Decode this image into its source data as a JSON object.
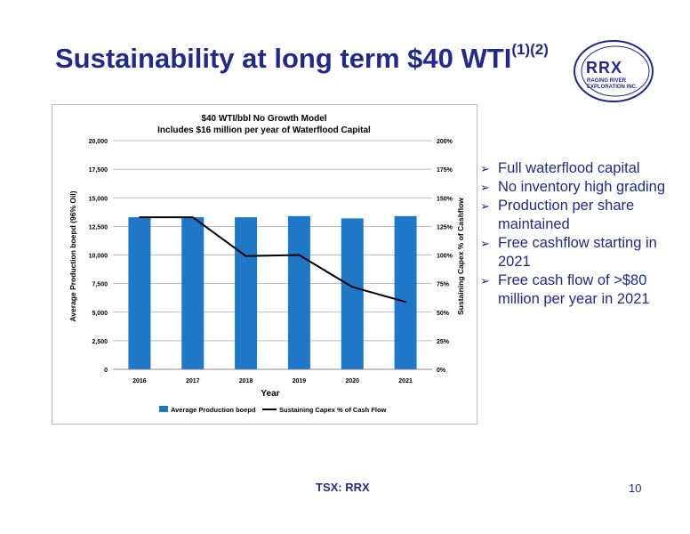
{
  "slide": {
    "title": "Sustainability at long term $40 WTI",
    "title_sup": "(1)(2)",
    "footer": "TSX: RRX",
    "page_number": "10"
  },
  "logo": {
    "text": "RRX",
    "subtext": "RAGING RIVER EXPLORATION INC."
  },
  "bullets": [
    "Full waterflood capital",
    "No inventory high grading",
    "Production per share maintained",
    "Free cashflow starting in 2021",
    "Free cash flow of >$80 million per year in 2021"
  ],
  "colors": {
    "brand": "#1f2a8c",
    "bar": "#1f77c8",
    "line": "#000000"
  },
  "chart_data": {
    "type": "bar",
    "title": "$40 WTI/bbl No Growth Model",
    "subtitle": "Includes $16 million per year of Waterflood Capital",
    "xlabel": "Year",
    "ylabel": "Average Production boepd (96% Oil)",
    "y2label": "Sustaining Capex % of Cashflow",
    "categories": [
      "2016",
      "2017",
      "2018",
      "2019",
      "2020",
      "2021"
    ],
    "ylim": [
      0,
      20000
    ],
    "y2lim": [
      0,
      200
    ],
    "yticks": [
      "0",
      "2,500",
      "5,000",
      "7,500",
      "10,000",
      "12,500",
      "15,000",
      "17,500",
      "20,000"
    ],
    "y2ticks": [
      "0%",
      "25%",
      "50%",
      "75%",
      "100%",
      "125%",
      "150%",
      "175%",
      "200%"
    ],
    "grid": true,
    "legend_position": "bottom",
    "series": [
      {
        "name": "Average Production boepd",
        "type": "bar",
        "axis": "left",
        "values": [
          13300,
          13300,
          13300,
          13400,
          13200,
          13400
        ]
      },
      {
        "name": "Sustaining Capex % of Cash Flow",
        "type": "line",
        "axis": "right",
        "values": [
          133,
          133,
          99,
          100,
          72,
          59
        ]
      }
    ]
  }
}
